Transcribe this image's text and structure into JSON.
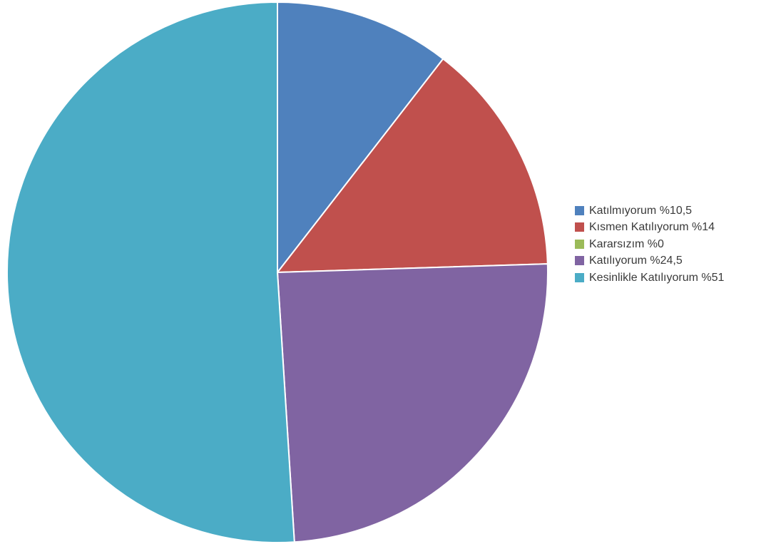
{
  "chart_data": {
    "type": "pie",
    "start_angle": "12 o'clock",
    "direction": "clockwise",
    "legend_position": "right",
    "slices": [
      {
        "label": "Katılmıyorum %10,5",
        "value": 10.5,
        "color": "#4F81BD"
      },
      {
        "label": "Kısmen Katılıyorum %14",
        "value": 14,
        "color": "#C0504D"
      },
      {
        "label": "Kararsızım %0",
        "value": 0,
        "color": "#9BBB59"
      },
      {
        "label": "Katılıyorum %24,5",
        "value": 24.5,
        "color": "#8064A2"
      },
      {
        "label": "Kesinlikle Katılıyorum %51",
        "value": 51,
        "color": "#4BACC6"
      }
    ]
  }
}
